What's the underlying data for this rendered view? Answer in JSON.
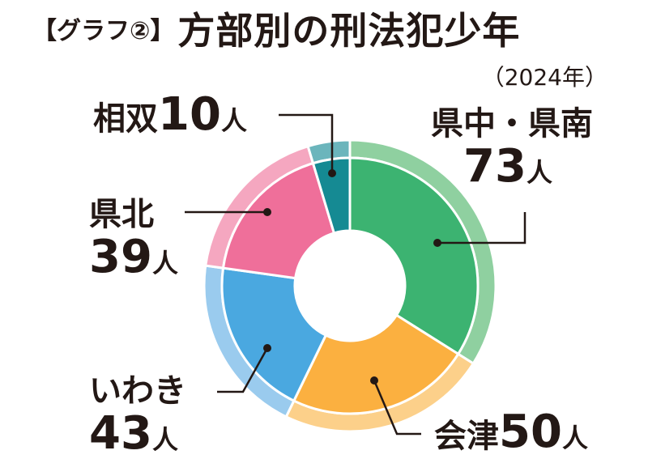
{
  "header": {
    "tag": "【グラフ②】",
    "title": "方部別の刑法犯少年",
    "subtitle": "（2024年）"
  },
  "chart_data": {
    "type": "pie",
    "title": "方部別の刑法犯少年",
    "subtitle": "（2024年）",
    "unit": "人",
    "donut": true,
    "slices": [
      {
        "label": "県中・県南",
        "value": 73,
        "color": "#3cb371",
        "outer_color": "#8fd0a0"
      },
      {
        "label": "会津",
        "value": 50,
        "color": "#fbb040",
        "outer_color": "#fcd08a"
      },
      {
        "label": "いわき",
        "value": 43,
        "color": "#4aa8e0",
        "outer_color": "#9acbee"
      },
      {
        "label": "県北",
        "value": 39,
        "color": "#ef6f9a",
        "outer_color": "#f5a7c0"
      },
      {
        "label": "相双",
        "value": 10,
        "color": "#158a93",
        "outer_color": "#6bb5bc"
      }
    ]
  },
  "labels": {
    "soso": {
      "name": "相双",
      "num": "10",
      "unit": "人"
    },
    "north": {
      "name": "県北",
      "num": "39",
      "unit": "人"
    },
    "iwaki": {
      "name": "いわき",
      "num": "43",
      "unit": "人"
    },
    "central": {
      "name": "県中・県南",
      "num": "73",
      "unit": "人"
    },
    "aizu": {
      "name": "会津",
      "num": "50",
      "unit": "人"
    }
  }
}
